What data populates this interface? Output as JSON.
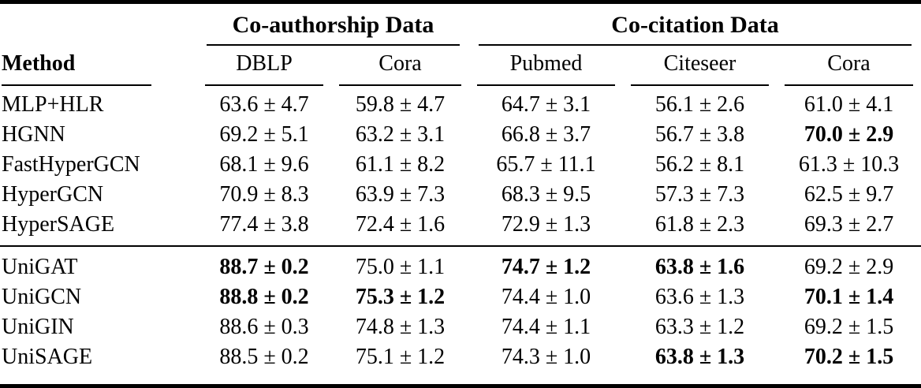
{
  "colors": {
    "text": "#000000",
    "background": "#ffffff",
    "rules": "#000000"
  },
  "table": {
    "method_header": "Method",
    "col_groups": [
      {
        "label": "Co-authorship Data",
        "span": 2
      },
      {
        "label": "Co-citation Data",
        "span": 3
      }
    ],
    "columns": [
      "DBLP",
      "Cora",
      "Pubmed",
      "Citeseer",
      "Cora"
    ],
    "groups": [
      {
        "rows": [
          {
            "method": "MLP+HLR",
            "values": [
              {
                "text": "63.6 ± 4.7",
                "bold": false
              },
              {
                "text": "59.8 ± 4.7",
                "bold": false
              },
              {
                "text": "64.7 ± 3.1",
                "bold": false
              },
              {
                "text": "56.1 ± 2.6",
                "bold": false
              },
              {
                "text": "61.0 ± 4.1",
                "bold": false
              }
            ]
          },
          {
            "method": "HGNN",
            "values": [
              {
                "text": "69.2 ± 5.1",
                "bold": false
              },
              {
                "text": "63.2 ± 3.1",
                "bold": false
              },
              {
                "text": "66.8 ± 3.7",
                "bold": false
              },
              {
                "text": "56.7 ± 3.8",
                "bold": false
              },
              {
                "text": "70.0 ± 2.9",
                "bold": true
              }
            ]
          },
          {
            "method": "FastHyperGCN",
            "values": [
              {
                "text": "68.1 ± 9.6",
                "bold": false
              },
              {
                "text": "61.1 ± 8.2",
                "bold": false
              },
              {
                "text": "65.7 ± 11.1",
                "bold": false
              },
              {
                "text": "56.2 ± 8.1",
                "bold": false
              },
              {
                "text": "61.3 ± 10.3",
                "bold": false
              }
            ]
          },
          {
            "method": "HyperGCN",
            "values": [
              {
                "text": "70.9 ± 8.3",
                "bold": false
              },
              {
                "text": "63.9 ± 7.3",
                "bold": false
              },
              {
                "text": "68.3 ± 9.5",
                "bold": false
              },
              {
                "text": "57.3 ± 7.3",
                "bold": false
              },
              {
                "text": "62.5 ± 9.7",
                "bold": false
              }
            ]
          },
          {
            "method": "HyperSAGE",
            "values": [
              {
                "text": "77.4 ± 3.8",
                "bold": false
              },
              {
                "text": "72.4 ± 1.6",
                "bold": false
              },
              {
                "text": "72.9 ± 1.3",
                "bold": false
              },
              {
                "text": "61.8 ± 2.3",
                "bold": false
              },
              {
                "text": "69.3 ± 2.7",
                "bold": false
              }
            ]
          }
        ]
      },
      {
        "rows": [
          {
            "method": "UniGAT",
            "values": [
              {
                "text": "88.7 ± 0.2",
                "bold": true
              },
              {
                "text": "75.0 ± 1.1",
                "bold": false
              },
              {
                "text": "74.7 ± 1.2",
                "bold": true
              },
              {
                "text": "63.8 ± 1.6",
                "bold": true
              },
              {
                "text": "69.2 ± 2.9",
                "bold": false
              }
            ]
          },
          {
            "method": "UniGCN",
            "values": [
              {
                "text": "88.8 ± 0.2",
                "bold": true
              },
              {
                "text": "75.3 ± 1.2",
                "bold": true
              },
              {
                "text": "74.4 ± 1.0",
                "bold": false
              },
              {
                "text": "63.6 ± 1.3",
                "bold": false
              },
              {
                "text": "70.1 ± 1.4",
                "bold": true
              }
            ]
          },
          {
            "method": "UniGIN",
            "values": [
              {
                "text": "88.6 ± 0.3",
                "bold": false
              },
              {
                "text": "74.8 ± 1.3",
                "bold": false
              },
              {
                "text": "74.4 ± 1.1",
                "bold": false
              },
              {
                "text": "63.3 ± 1.2",
                "bold": false
              },
              {
                "text": "69.2 ± 1.5",
                "bold": false
              }
            ]
          },
          {
            "method": "UniSAGE",
            "values": [
              {
                "text": "88.5 ± 0.2",
                "bold": false
              },
              {
                "text": "75.1 ± 1.2",
                "bold": false
              },
              {
                "text": "74.3 ± 1.0",
                "bold": false
              },
              {
                "text": "63.8 ± 1.3",
                "bold": true
              },
              {
                "text": "70.2 ± 1.5",
                "bold": true
              }
            ]
          }
        ]
      }
    ]
  }
}
